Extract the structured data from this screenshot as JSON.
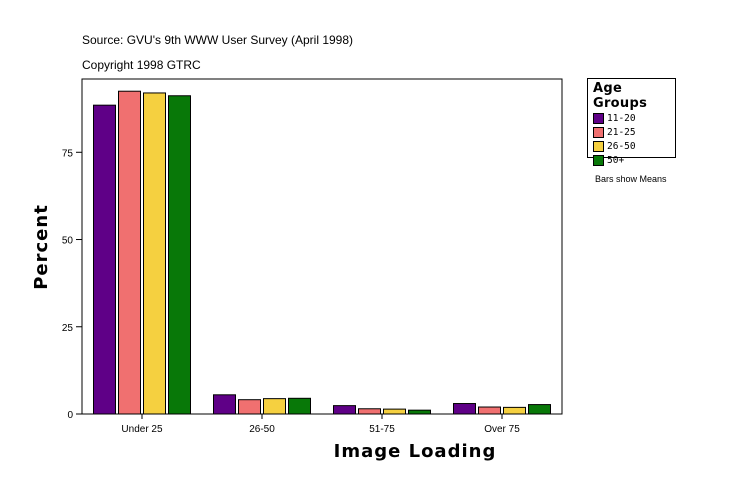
{
  "source_line": "Source: GVU's 9th WWW User Survey (April 1998)",
  "copyright_line": "Copyright 1998 GTRC",
  "note": "Bars show Means",
  "legend": {
    "title": "Age Groups",
    "items": [
      {
        "label": "11-20",
        "color": "#5f0087"
      },
      {
        "label": "21-25",
        "color": "#f07070"
      },
      {
        "label": "26-50",
        "color": "#f5d040"
      },
      {
        "label": "50+",
        "color": "#087808"
      }
    ]
  },
  "chart_data": {
    "type": "bar",
    "categories": [
      "Under 25",
      "26-50",
      "51-75",
      "Over 75"
    ],
    "series": [
      {
        "name": "11-20",
        "color": "#5f0087",
        "values": [
          88.5,
          5.5,
          2.4,
          3.0
        ]
      },
      {
        "name": "21-25",
        "color": "#f07070",
        "values": [
          92.5,
          4.1,
          1.5,
          2.0
        ]
      },
      {
        "name": "26-50",
        "color": "#f5d040",
        "values": [
          92.0,
          4.4,
          1.4,
          1.9
        ]
      },
      {
        "name": "50+",
        "color": "#087808",
        "values": [
          91.2,
          4.5,
          1.1,
          2.7
        ]
      }
    ],
    "xlabel": "Image Loading",
    "ylabel": "Percent",
    "ylim": [
      0,
      96
    ],
    "yticks": [
      0,
      25,
      50,
      75
    ],
    "grid": false,
    "legend_position": "right"
  }
}
